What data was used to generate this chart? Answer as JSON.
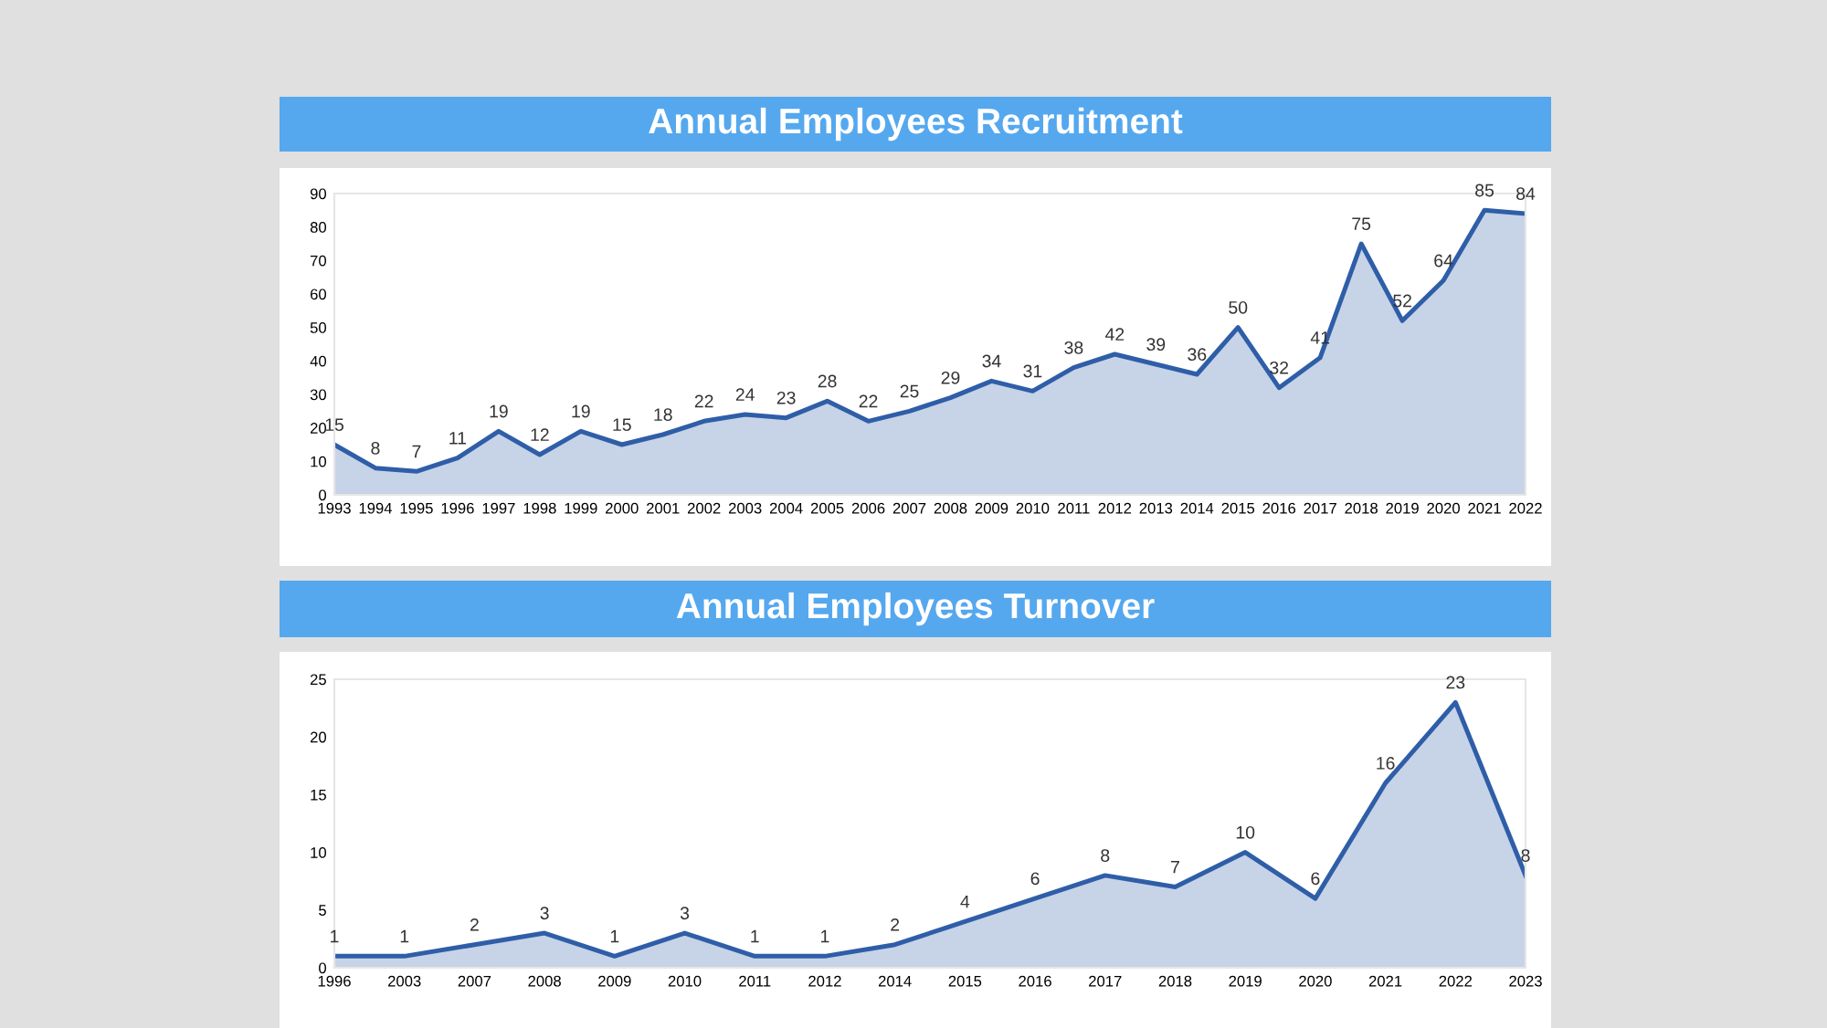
{
  "chart_data": [
    {
      "type": "area",
      "title": "Annual Employees Recruitment",
      "categories": [
        "1993",
        "1994",
        "1995",
        "1996",
        "1997",
        "1998",
        "1999",
        "2000",
        "2001",
        "2002",
        "2003",
        "2004",
        "2005",
        "2006",
        "2007",
        "2008",
        "2009",
        "2010",
        "2011",
        "2012",
        "2013",
        "2014",
        "2015",
        "2016",
        "2017",
        "2018",
        "2019",
        "2020",
        "2021",
        "2022"
      ],
      "values": [
        15,
        8,
        7,
        11,
        19,
        12,
        19,
        15,
        18,
        22,
        24,
        23,
        28,
        22,
        25,
        29,
        34,
        31,
        38,
        42,
        39,
        36,
        50,
        32,
        41,
        75,
        52,
        64,
        85,
        84
      ],
      "color": "#2f5ea8",
      "ylim": [
        0,
        90
      ],
      "yticks": [
        0,
        10,
        20,
        30,
        40,
        50,
        60,
        70,
        80,
        90
      ],
      "data_labels": true
    },
    {
      "type": "area",
      "title": "Annual Employees Turnover",
      "categories": [
        "1996",
        "2003",
        "2007",
        "2008",
        "2009",
        "2010",
        "2011",
        "2012",
        "2014",
        "2015",
        "2016",
        "2017",
        "2018",
        "2019",
        "2020",
        "2021",
        "2022",
        "2023"
      ],
      "values": [
        1,
        1,
        2,
        3,
        1,
        3,
        1,
        1,
        2,
        4,
        6,
        8,
        7,
        10,
        6,
        16,
        23,
        8
      ],
      "color": "#2f5ea8",
      "ylim": [
        0,
        25
      ],
      "yticks": [
        0,
        5,
        10,
        15,
        20,
        25
      ],
      "data_labels": true
    }
  ]
}
